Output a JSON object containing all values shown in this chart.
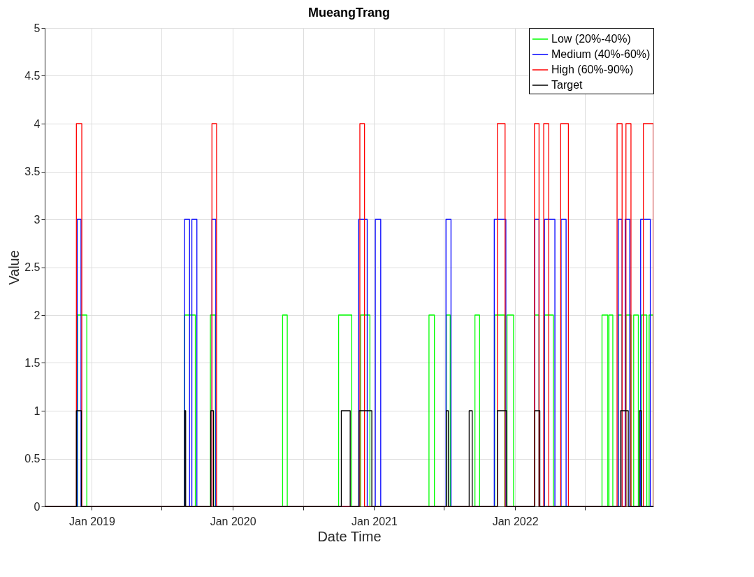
{
  "chart_data": {
    "type": "step",
    "title": "MueangTrang",
    "xlabel": "Date Time",
    "ylabel": "Value",
    "xlim": [
      "2018-09-01",
      "2022-12-25"
    ],
    "ylim": [
      0,
      5
    ],
    "xticks": [
      {
        "value": "2019-01-01",
        "label": "Jan 2019"
      },
      {
        "value": "2019-07-01",
        "label": null
      },
      {
        "value": "2020-01-01",
        "label": "Jan 2020"
      },
      {
        "value": "2020-07-01",
        "label": null
      },
      {
        "value": "2021-01-01",
        "label": "Jan 2021"
      },
      {
        "value": "2021-07-01",
        "label": null
      },
      {
        "value": "2022-01-01",
        "label": "Jan 2022"
      },
      {
        "value": "2022-07-01",
        "label": null
      }
    ],
    "yticks": [
      0,
      0.5,
      1,
      1.5,
      2,
      2.5,
      3,
      3.5,
      4,
      4.5,
      5
    ],
    "grid": true,
    "legend": "top right",
    "line_style": "solid",
    "series": [
      {
        "name": "Low (20%-40%)",
        "color": "#00ff00",
        "x": [
          "2018-09-01",
          "2018-11-25",
          "2018-12-19",
          "2019-08-29",
          "2019-09-26",
          "2019-11-04",
          "2019-11-17",
          "2020-05-09",
          "2020-05-21",
          "2020-10-01",
          "2020-11-04",
          "2020-11-27",
          "2020-12-21",
          "2021-05-23",
          "2021-06-06",
          "2021-07-07",
          "2021-07-17",
          "2021-09-19",
          "2021-10-01",
          "2021-11-09",
          "2021-12-05",
          "2021-12-11",
          "2021-12-28",
          "2022-02-21",
          "2022-03-04",
          "2022-03-18",
          "2022-04-10",
          "2022-08-14",
          "2022-08-29",
          "2022-09-01",
          "2022-09-11",
          "2022-09-25",
          "2022-10-05",
          "2022-10-15",
          "2022-10-28",
          "2022-11-04",
          "2022-11-16",
          "2022-11-24",
          "2022-12-08",
          "2022-12-14",
          "2022-12-25"
        ],
        "values": [
          0,
          2,
          0,
          2,
          0,
          2,
          0,
          2,
          0,
          2,
          0,
          2,
          0,
          2,
          0,
          2,
          0,
          2,
          0,
          2,
          0,
          2,
          0,
          2,
          0,
          2,
          0,
          2,
          0,
          2,
          0,
          2,
          0,
          2,
          0,
          2,
          0,
          2,
          0,
          2,
          0
        ]
      },
      {
        "name": "Medium (40%-60%)",
        "color": "#0000ff",
        "x": [
          "2018-09-01",
          "2018-11-24",
          "2018-12-04",
          "2019-08-29",
          "2019-09-11",
          "2019-09-17",
          "2019-09-30",
          "2019-11-08",
          "2019-11-18",
          "2020-11-22",
          "2020-12-14",
          "2021-01-04",
          "2021-01-18",
          "2021-07-06",
          "2021-07-19",
          "2021-11-08",
          "2021-12-08",
          "2022-02-21",
          "2022-03-04",
          "2022-03-18",
          "2022-04-14",
          "2022-04-30",
          "2022-05-13",
          "2022-09-25",
          "2022-10-05",
          "2022-10-13",
          "2022-10-25",
          "2022-11-22",
          "2022-12-17",
          "2022-12-25"
        ],
        "values": [
          0,
          3,
          0,
          3,
          0,
          3,
          0,
          3,
          0,
          3,
          0,
          3,
          0,
          3,
          0,
          3,
          0,
          3,
          0,
          3,
          0,
          3,
          0,
          3,
          0,
          3,
          0,
          3,
          0,
          0
        ]
      },
      {
        "name": "High (60%-90%)",
        "color": "#ff0000",
        "x": [
          "2018-09-01",
          "2018-11-22",
          "2018-12-06",
          "2019-11-08",
          "2019-11-20",
          "2020-11-25",
          "2020-12-07",
          "2021-11-16",
          "2021-12-06",
          "2022-02-20",
          "2022-03-04",
          "2022-03-16",
          "2022-03-29",
          "2022-04-29",
          "2022-05-19",
          "2022-09-22",
          "2022-10-05",
          "2022-10-15",
          "2022-10-28",
          "2022-11-29",
          "2022-12-25"
        ],
        "values": [
          0,
          4,
          0,
          4,
          0,
          4,
          0,
          4,
          0,
          4,
          0,
          4,
          0,
          4,
          0,
          4,
          0,
          4,
          0,
          4,
          0
        ]
      },
      {
        "name": "Target",
        "color": "#000000",
        "x": [
          "2018-09-01",
          "2018-11-22",
          "2018-12-05",
          "2019-08-29",
          "2019-09-01",
          "2019-11-05",
          "2019-11-12",
          "2020-10-08",
          "2020-10-31",
          "2020-11-23",
          "2020-12-26",
          "2021-07-07",
          "2021-07-12",
          "2021-09-04",
          "2021-09-12",
          "2021-11-16",
          "2021-12-10",
          "2022-02-21",
          "2022-03-06",
          "2022-10-01",
          "2022-10-21",
          "2022-11-19",
          "2022-11-24",
          "2022-12-25"
        ],
        "values": [
          0,
          1,
          0,
          1,
          0,
          1,
          0,
          1,
          0,
          1,
          0,
          1,
          0,
          1,
          0,
          1,
          0,
          1,
          0,
          1,
          0,
          1,
          0,
          0
        ]
      }
    ]
  }
}
